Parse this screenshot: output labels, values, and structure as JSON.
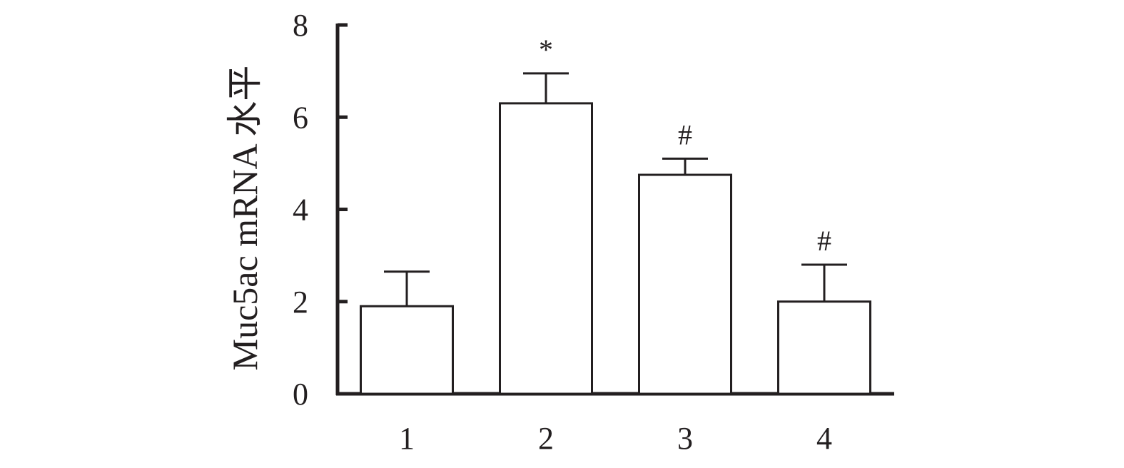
{
  "chart_data": {
    "type": "bar",
    "title": "",
    "xlabel": "",
    "ylabel": "Muc5ac mRNA 水平",
    "categories": [
      "1",
      "2",
      "3",
      "4"
    ],
    "series": [
      {
        "values": [
          1.9,
          6.3,
          4.75,
          2.0
        ],
        "errors": [
          0.75,
          0.65,
          0.35,
          0.8
        ]
      }
    ],
    "annotations": [
      "",
      "*",
      "#",
      "#"
    ],
    "ylim": [
      0,
      8
    ],
    "yticks": [
      0,
      2,
      4,
      6,
      8
    ],
    "grid": false,
    "legend": "none",
    "bar_fill": "#ffffff",
    "stroke_color": "#231f20"
  }
}
